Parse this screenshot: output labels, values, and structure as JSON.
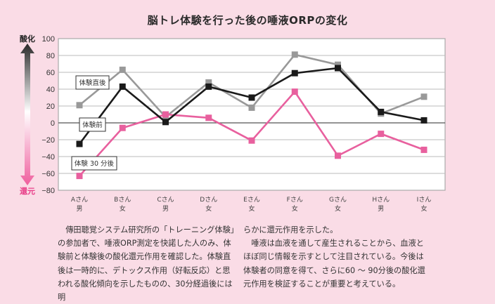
{
  "chart_data": {
    "type": "line",
    "title": "脳トレ体験を行った後の唾液ORPの変化",
    "categories": [
      {
        "name": "Aさん",
        "sex": "男"
      },
      {
        "name": "Bさん",
        "sex": "女"
      },
      {
        "name": "Cさん",
        "sex": "男"
      },
      {
        "name": "Dさん",
        "sex": "女"
      },
      {
        "name": "Eさん",
        "sex": "女"
      },
      {
        "name": "Fさん",
        "sex": "女"
      },
      {
        "name": "Gさん",
        "sex": "女"
      },
      {
        "name": "Hさん",
        "sex": "男"
      },
      {
        "name": "Iさん",
        "sex": "女"
      }
    ],
    "series": [
      {
        "name": "体験直後",
        "color": "#999999",
        "values": [
          21,
          63,
          7,
          48,
          18,
          81,
          69,
          11,
          31
        ]
      },
      {
        "name": "体験前",
        "color": "#1a1a1a",
        "values": [
          -25,
          43,
          1,
          43,
          30,
          59,
          65,
          13,
          3
        ]
      },
      {
        "name": "体験30分後",
        "color": "#e8609e",
        "values": [
          -63,
          -6,
          10,
          6,
          -21,
          37,
          -39,
          -13,
          -32
        ]
      }
    ],
    "series_labels": [
      "体験直後",
      "体験前",
      "体験 30 分後"
    ],
    "ylim": [
      -80,
      100
    ],
    "yticks": [
      100,
      80,
      60,
      40,
      20,
      0,
      -20,
      -40,
      -60,
      -80
    ],
    "ytick_labels": [
      "100",
      "80",
      "60",
      "40",
      "20",
      "0",
      "−20",
      "−40",
      "−60",
      "−80"
    ],
    "grid": true,
    "y_direction_labels": {
      "top": "酸化",
      "bottom": "還元"
    },
    "xlabel": "",
    "ylabel": ""
  },
  "colors": {
    "background": "#fadce6",
    "oxidation": "#222222",
    "reduction": "#e8408a"
  },
  "body": {
    "col1": "傳田聴覚システム研究所の「トレーニング体験」の参加者で、唾液ORP測定を快諾した人のみ、体験前と体験後の酸化還元作用を確認した。体験直後は一時的に、デトックス作用（好転反応）と思われる酸化傾向を示したものの、30分経過後には明",
    "col2_p1": "らかに還元作用を示した。",
    "col2_p2": "唾液は血液を通して産生されることから、血液とほぼ同じ情報を示すとして注目されている。今後は体験者の同意を得て、さらに60 ～ 90分後の酸化還元作用を検証することが重要と考えている。"
  }
}
